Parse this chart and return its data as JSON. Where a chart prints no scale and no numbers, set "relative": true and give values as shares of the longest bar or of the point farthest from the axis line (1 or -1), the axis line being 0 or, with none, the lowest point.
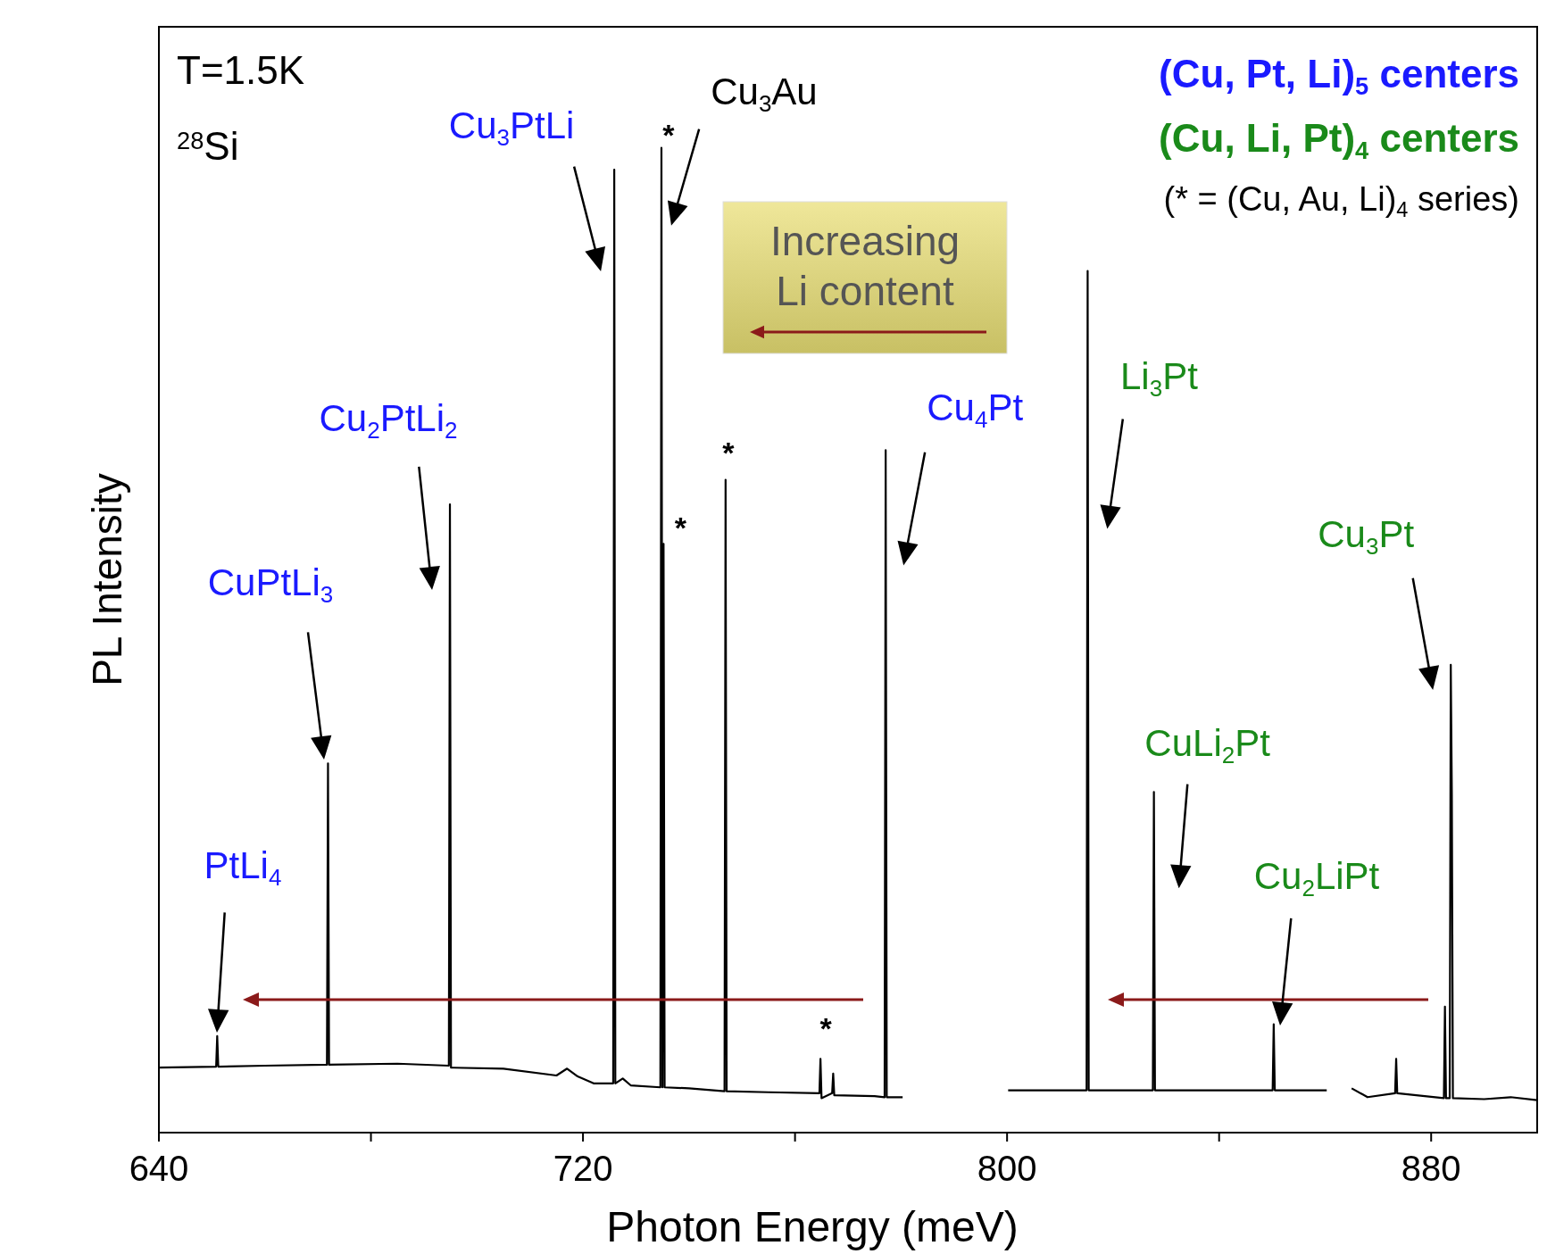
{
  "chart_data": {
    "type": "line",
    "relative": true,
    "xlabel": "Photon Energy (meV)",
    "ylabel": "PL Intensity",
    "xlim": [
      640,
      900
    ],
    "xticks": [
      640,
      {
        "value": 680,
        "label": null
      },
      720,
      {
        "value": 760,
        "label": null
      },
      800,
      {
        "value": 840,
        "label": null
      },
      880
    ],
    "x": [
      640,
      650.8,
      651.0,
      651.2,
      660,
      671.7,
      671.9,
      672.1,
      685,
      694.7,
      694.9,
      695.1,
      705,
      715,
      717,
      719,
      722,
      725.7,
      725.9,
      726.1,
      727.5,
      729,
      734.6,
      734.8,
      735.0,
      735.2,
      735.4,
      740,
      746.7,
      746.9,
      747.1,
      755,
      764.6,
      764.8,
      765.0,
      767.0,
      767.2,
      767.4,
      775,
      776.9,
      777.1,
      777.3,
      780.3,
      790,
      800.2,
      815.0,
      815.2,
      815.4,
      827.5,
      827.7,
      827.9,
      850.1,
      850.3,
      850.5,
      860.3,
      862.8,
      865.0,
      868,
      873.2,
      873.4,
      873.6,
      882.4,
      882.6,
      882.8,
      883.5,
      883.7,
      883.9,
      884.1,
      890,
      895,
      900
    ],
    "series": [
      {
        "color": "#000000",
        "values": [
          0.066,
          0.067,
          0.098,
          0.067,
          0.068,
          0.069,
          0.375,
          0.069,
          0.07,
          0.068,
          0.638,
          0.066,
          0.065,
          0.058,
          0.065,
          0.057,
          0.05,
          0.05,
          0.978,
          0.05,
          0.055,
          0.048,
          0.046,
          1.0,
          0.046,
          0.598,
          0.046,
          0.045,
          0.042,
          0.663,
          0.042,
          0.041,
          0.04,
          0.075,
          0.035,
          0.04,
          0.06,
          0.038,
          0.037,
          0.036,
          0.693,
          0.036,
          0.036,
          null,
          0.043,
          0.043,
          0.875,
          0.043,
          0.043,
          0.346,
          0.043,
          0.043,
          0.11,
          0.043,
          0.043,
          null,
          0.045,
          0.036,
          0.04,
          0.075,
          0.04,
          0.035,
          0.128,
          0.035,
          0.035,
          0.475,
          0.343,
          0.035,
          0.034,
          0.036,
          0.033
        ]
      }
    ],
    "annotations": [
      "T=1.5K",
      "$^{28}$Si",
      "(Cu, Pt, Li)$_{5}$ centers",
      "(Cu, Li, Pt)$_{4}$ centers",
      "(* = (Cu, Au, Li)$_{4}$ series)",
      "Increasing Li content",
      "PtLi$_{4}$",
      "CuPtLi$_{3}$",
      "Cu$_{2}$LiPt",
      {
        "text": "Cu$_{2}$PtLi$_{2}$",
        "x": 694.9,
        "y": 0.638
      },
      {
        "text": "Cu$_{3}$PtLi",
        "x": 725.9,
        "y": 0.978
      },
      {
        "text": "Cu$_{3}$Au",
        "x": 734.8,
        "y": 1.0
      },
      {
        "text": "Cu$_{4}$Pt",
        "x": 777.1,
        "y": 0.693
      },
      {
        "text": "Li$_{3}$Pt",
        "x": 815.2,
        "y": 0.875
      },
      {
        "text": "CuLi$_{2}$Pt",
        "x": 827.7,
        "y": 0.346
      },
      {
        "text": "Cu$_{3}$Pt",
        "x": 883.7,
        "y": 0.475
      },
      {
        "text": "*",
        "x": 734.8,
        "y": 1.0
      },
      {
        "text": "*",
        "x": 735.2,
        "y": 0.598
      },
      {
        "text": "*",
        "x": 746.9,
        "y": 0.663
      },
      {
        "text": "*",
        "x": 764.8,
        "y": 0.075
      }
    ]
  }
}
